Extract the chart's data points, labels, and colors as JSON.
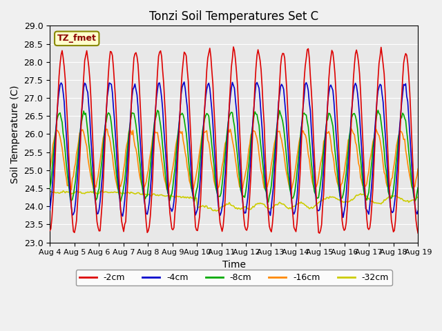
{
  "title": "Tonzi Soil Temperatures Set C",
  "xlabel": "Time",
  "ylabel": "Soil Temperature (C)",
  "annotation": "TZ_fmet",
  "ylim": [
    23.0,
    29.0
  ],
  "yticks": [
    23.0,
    23.5,
    24.0,
    24.5,
    25.0,
    25.5,
    26.0,
    26.5,
    27.0,
    27.5,
    28.0,
    28.5,
    29.0
  ],
  "xtick_labels": [
    "Aug 4",
    "Aug 5",
    "Aug 6",
    "Aug 7",
    "Aug 8",
    "Aug 9",
    "Aug 10",
    "Aug 11",
    "Aug 12",
    "Aug 13",
    "Aug 14",
    "Aug 15",
    "Aug 16",
    "Aug 17",
    "Aug 18",
    "Aug 19"
  ],
  "colors": {
    "-2cm": "#dd0000",
    "-4cm": "#0000cc",
    "-8cm": "#00aa00",
    "-16cm": "#ff8800",
    "-32cm": "#cccc00"
  },
  "legend_labels": [
    "-2cm",
    "-4cm",
    "-8cm",
    "-16cm",
    "-32cm"
  ],
  "n_points": 360,
  "base": 25.5,
  "amp_2": 2.5,
  "amp_4": 1.8,
  "amp_8": 1.2,
  "amp_16": 0.8
}
